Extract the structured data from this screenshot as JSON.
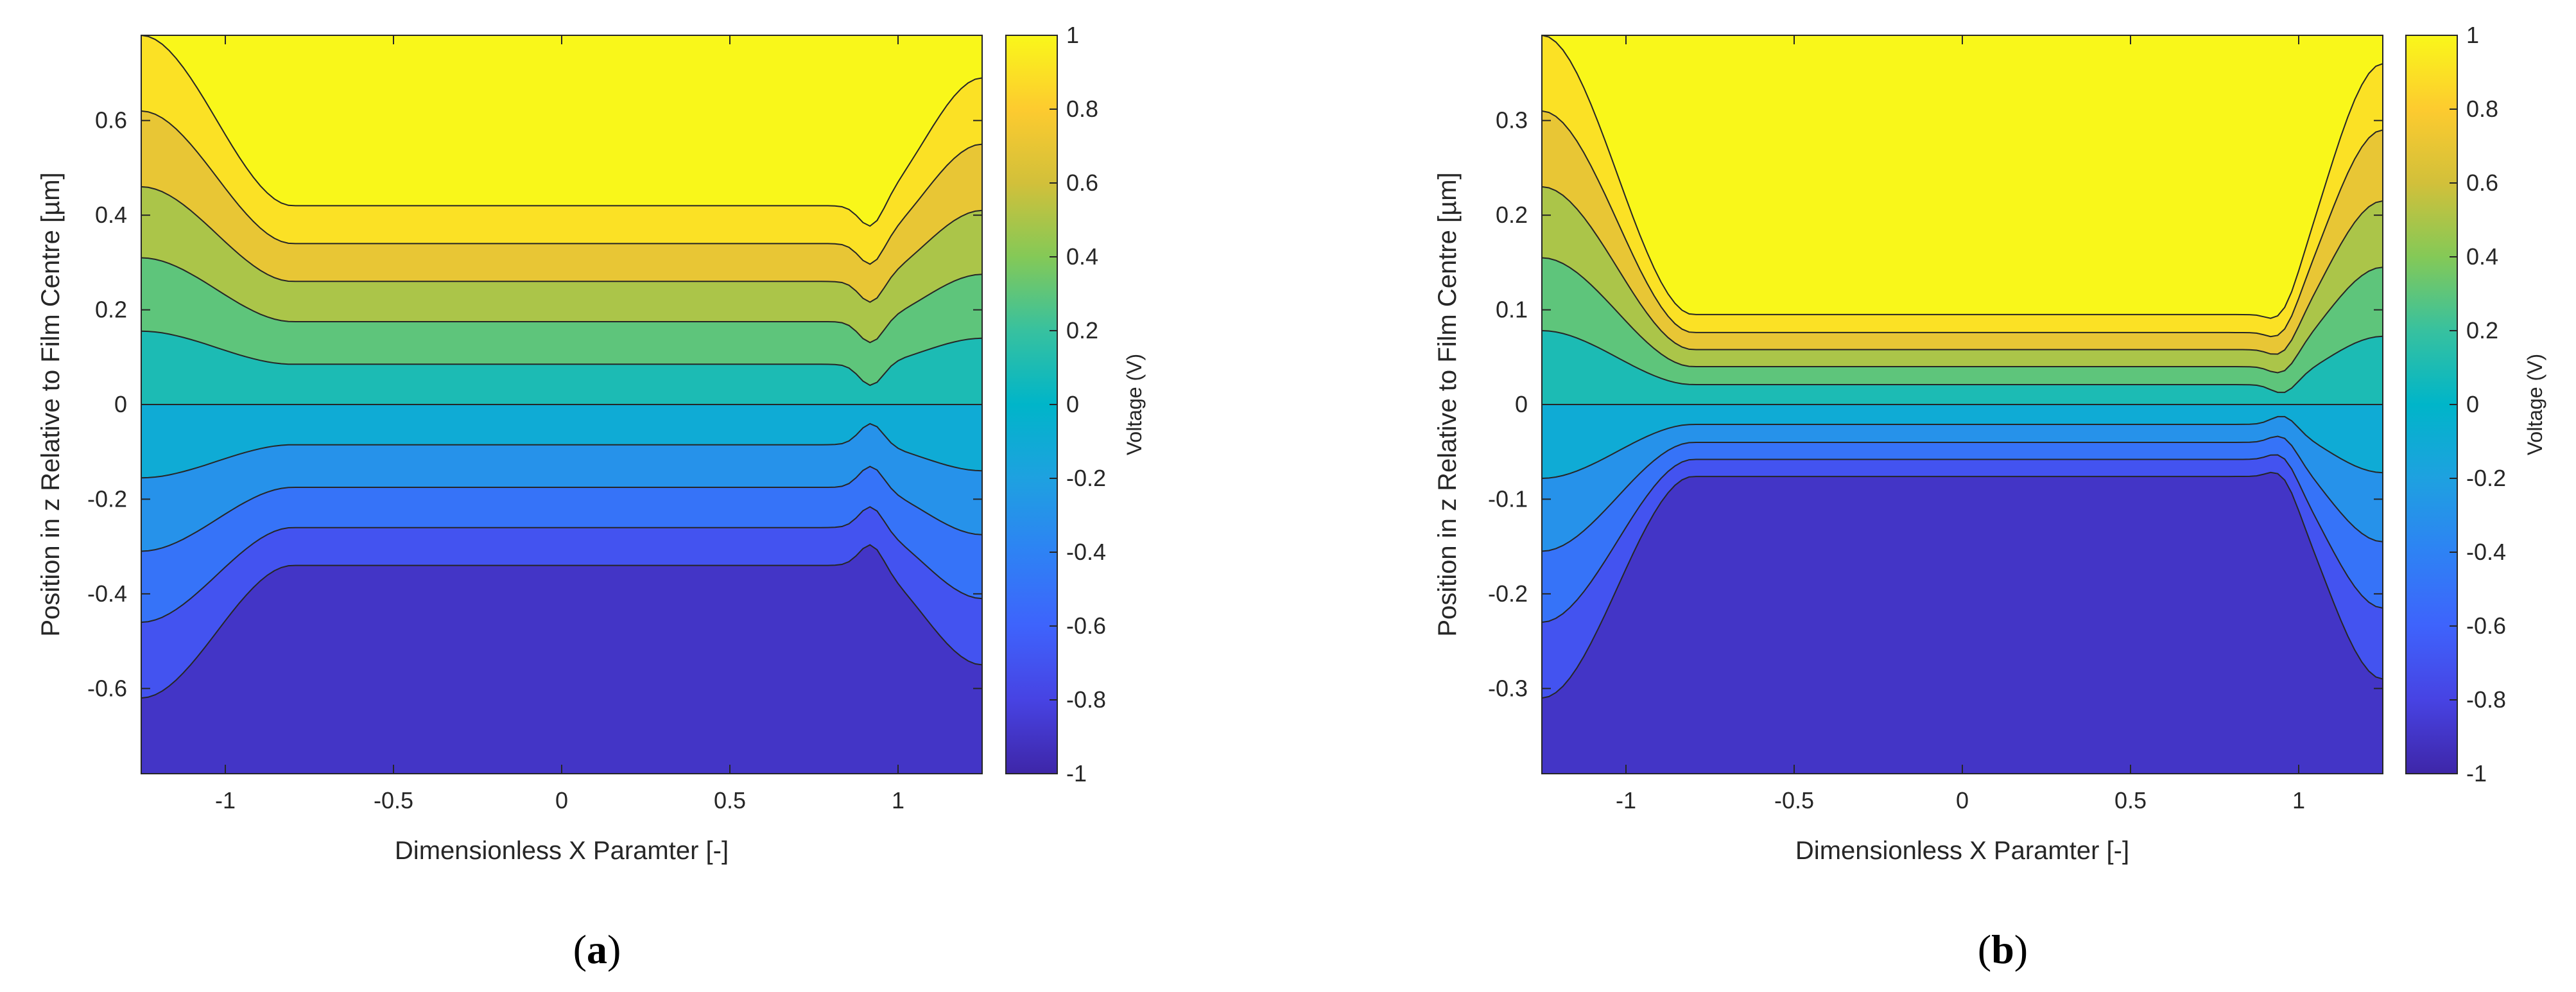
{
  "chart_data": [
    {
      "type": "contour",
      "panel": "a",
      "caption_open": "(",
      "caption_letter": "a",
      "caption_close": ")",
      "xlabel": "Dimensionless X Paramter [-]",
      "ylabel": "Position in z Relative to Film Centre [µm]",
      "colorbar_label": "Voltage (V)",
      "xlim": [
        -1.25,
        1.25
      ],
      "ylim": [
        -0.78,
        0.78
      ],
      "xticks": [
        -1,
        -0.5,
        0,
        0.5,
        1
      ],
      "xtick_labels": [
        "-1",
        "-0.5",
        "0",
        "0.5",
        "1"
      ],
      "yticks": [
        -0.6,
        -0.4,
        -0.2,
        0,
        0.2,
        0.4,
        0.6
      ],
      "ytick_labels": [
        "-0.6",
        "-0.4",
        "-0.2",
        "0",
        "0.2",
        "0.4",
        "0.6"
      ],
      "clim": [
        -1,
        1
      ],
      "colorbar_ticks": [
        -1,
        -0.8,
        -0.6,
        -0.4,
        -0.2,
        0,
        0.2,
        0.4,
        0.6,
        0.8,
        1
      ],
      "colorbar_tick_labels": [
        "-1",
        "-0.8",
        "-0.6",
        "-0.4",
        "-0.2",
        "0",
        "0.2",
        "0.4",
        "0.6",
        "0.8",
        "1"
      ],
      "contour_levels": [
        -1,
        -0.8,
        -0.6,
        -0.4,
        -0.2,
        0,
        0.2,
        0.4,
        0.6,
        0.8,
        1
      ],
      "contour_centre_heights": [
        -0.34,
        -0.26,
        -0.175,
        -0.085,
        0,
        0.085,
        0.175,
        0.26,
        0.34,
        0.42
      ],
      "edge_heights_left": [
        -0.62,
        -0.46,
        -0.31,
        -0.155,
        0,
        0.155,
        0.31,
        0.46,
        0.62,
        0.78
      ],
      "edge_heights_right": [
        -0.55,
        -0.41,
        -0.275,
        -0.14,
        0,
        0.14,
        0.275,
        0.41,
        0.55,
        0.69
      ],
      "bump": {
        "x": 0.92,
        "height": 0.045
      }
    },
    {
      "type": "contour",
      "panel": "b",
      "caption_open": "(",
      "caption_letter": "b",
      "caption_close": ")",
      "xlabel": "Dimensionless X Paramter [-]",
      "ylabel": "Position in z Relative to Film Centre [µm]",
      "colorbar_label": "Voltage (V)",
      "xlim": [
        -1.25,
        1.25
      ],
      "ylim": [
        -0.39,
        0.39
      ],
      "xticks": [
        -1,
        -0.5,
        0,
        0.5,
        1
      ],
      "xtick_labels": [
        "-1",
        "-0.5",
        "0",
        "0.5",
        "1"
      ],
      "yticks": [
        -0.3,
        -0.2,
        -0.1,
        0,
        0.1,
        0.2,
        0.3
      ],
      "ytick_labels": [
        "-0.3",
        "-0.2",
        "-0.1",
        "0",
        "0.1",
        "0.2",
        "0.3"
      ],
      "clim": [
        -1,
        1
      ],
      "colorbar_ticks": [
        -1,
        -0.8,
        -0.6,
        -0.4,
        -0.2,
        0,
        0.2,
        0.4,
        0.6,
        0.8,
        1
      ],
      "colorbar_tick_labels": [
        "-1",
        "-0.8",
        "-0.6",
        "-0.4",
        "-0.2",
        "0",
        "0.2",
        "0.4",
        "0.6",
        "0.8",
        "1"
      ],
      "contour_levels": [
        -1,
        -0.8,
        -0.6,
        -0.4,
        -0.2,
        0,
        0.2,
        0.4,
        0.6,
        0.8,
        1
      ],
      "contour_centre_heights": [
        -0.076,
        -0.058,
        -0.04,
        -0.021,
        0,
        0.021,
        0.04,
        0.058,
        0.076,
        0.095
      ],
      "edge_heights_left": [
        -0.31,
        -0.23,
        -0.155,
        -0.078,
        0,
        0.078,
        0.155,
        0.23,
        0.31,
        0.39
      ],
      "edge_heights_right": [
        -0.29,
        -0.215,
        -0.145,
        -0.072,
        0,
        0.072,
        0.145,
        0.215,
        0.29,
        0.36
      ],
      "bump": {
        "x": 0.96,
        "height": 0.012
      }
    }
  ],
  "colormap": [
    "#3e26a8",
    "#4743e3",
    "#3e63fc",
    "#2e82f4",
    "#1ea1e0",
    "#00b5c9",
    "#37c19f",
    "#84c957",
    "#d2c03a",
    "#fdcb2f",
    "#f9f71a"
  ],
  "contour_line_color": "#262626",
  "frame_color": "#262626"
}
